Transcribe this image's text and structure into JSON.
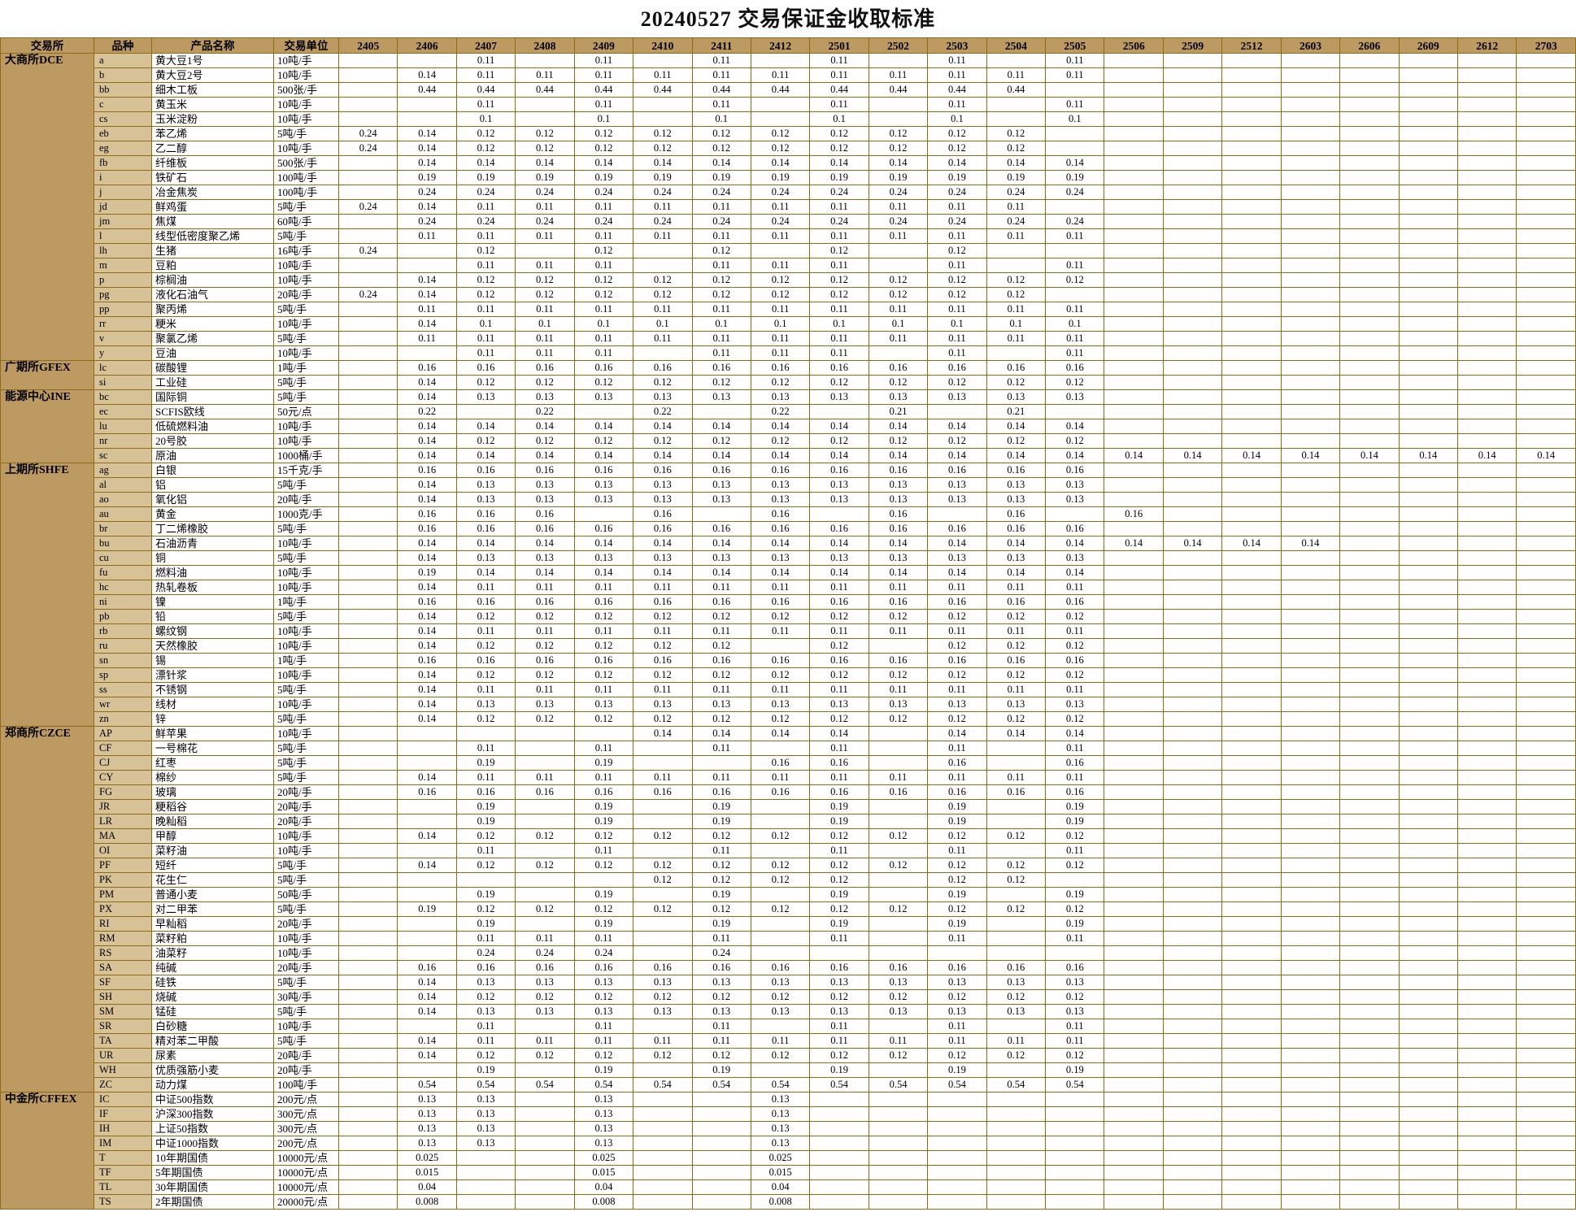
{
  "title": "20240527  交易保证金收取标准",
  "colors": {
    "header_bg": "#bc9a62",
    "code_bg": "#d7c197",
    "grid": "#8e6b16",
    "text": "#000000"
  },
  "table": {
    "headers": [
      "交易所",
      "品种",
      "产品名称",
      "交易单位"
    ],
    "months": [
      "2405",
      "2406",
      "2407",
      "2408",
      "2409",
      "2410",
      "2411",
      "2412",
      "2501",
      "2502",
      "2503",
      "2504",
      "2505",
      "2506",
      "2509",
      "2512",
      "2603",
      "2606",
      "2609",
      "2612",
      "2703"
    ],
    "exchanges": [
      {
        "name": "大商所DCE",
        "rows": [
          {
            "code": "a",
            "product": "黄大豆1号",
            "unit": "10吨/手",
            "m": {
              "2407": "0.11",
              "2409": "0.11",
              "2411": "0.11",
              "2501": "0.11",
              "2503": "0.11",
              "2505": "0.11"
            }
          },
          {
            "code": "b",
            "product": "黄大豆2号",
            "unit": "10吨/手",
            "m": {
              "2406": "0.14",
              "2407-2505": "0.11"
            }
          },
          {
            "code": "bb",
            "product": "细木工板",
            "unit": "500张/手",
            "m": {
              "2406-2504": "0.44"
            }
          },
          {
            "code": "c",
            "product": "黄玉米",
            "unit": "10吨/手",
            "m": {
              "2407": "0.11",
              "2409": "0.11",
              "2411": "0.11",
              "2501": "0.11",
              "2503": "0.11",
              "2505": "0.11"
            }
          },
          {
            "code": "cs",
            "product": "玉米淀粉",
            "unit": "10吨/手",
            "m": {
              "2407": "0.1",
              "2409": "0.1",
              "2411": "0.1",
              "2501": "0.1",
              "2503": "0.1",
              "2505": "0.1"
            }
          },
          {
            "code": "eb",
            "product": "苯乙烯",
            "unit": "5吨/手",
            "m": {
              "2405": "0.24",
              "2406": "0.14",
              "2407-2504": "0.12"
            }
          },
          {
            "code": "eg",
            "product": "乙二醇",
            "unit": "10吨/手",
            "m": {
              "2405": "0.24",
              "2406": "0.14",
              "2407-2504": "0.12"
            }
          },
          {
            "code": "fb",
            "product": "纤维板",
            "unit": "500张/手",
            "m": {
              "2406-2505": "0.14"
            }
          },
          {
            "code": "i",
            "product": "铁矿石",
            "unit": "100吨/手",
            "m": {
              "2406-2505": "0.19"
            }
          },
          {
            "code": "j",
            "product": "冶金焦炭",
            "unit": "100吨/手",
            "m": {
              "2406-2505": "0.24"
            }
          },
          {
            "code": "jd",
            "product": "鲜鸡蛋",
            "unit": "5吨/手",
            "m": {
              "2405": "0.24",
              "2406": "0.14",
              "2407-2504": "0.11"
            }
          },
          {
            "code": "jm",
            "product": "焦煤",
            "unit": "60吨/手",
            "m": {
              "2406-2505": "0.24"
            }
          },
          {
            "code": "l",
            "product": "线型低密度聚乙烯",
            "unit": "5吨/手",
            "m": {
              "2406-2505": "0.11"
            }
          },
          {
            "code": "lh",
            "product": "生猪",
            "unit": "16吨/手",
            "m": {
              "2405": "0.24",
              "2407": "0.12",
              "2409": "0.12",
              "2411": "0.12",
              "2501": "0.12",
              "2503": "0.12"
            }
          },
          {
            "code": "m",
            "product": "豆粕",
            "unit": "10吨/手",
            "m": {
              "2407-2409": "0.11",
              "2411": "0.11",
              "2412": "0.11",
              "2501": "0.11",
              "2503": "0.11",
              "2505": "0.11"
            }
          },
          {
            "code": "p",
            "product": "棕榈油",
            "unit": "10吨/手",
            "m": {
              "2406": "0.14",
              "2407-2505": "0.12"
            }
          },
          {
            "code": "pg",
            "product": "液化石油气",
            "unit": "20吨/手",
            "m": {
              "2405": "0.24",
              "2406": "0.14",
              "2407-2504": "0.12"
            }
          },
          {
            "code": "pp",
            "product": "聚丙烯",
            "unit": "5吨/手",
            "m": {
              "2406-2505": "0.11"
            }
          },
          {
            "code": "rr",
            "product": "粳米",
            "unit": "10吨/手",
            "m": {
              "2406": "0.14",
              "2407-2505": "0.1"
            }
          },
          {
            "code": "v",
            "product": "聚氯乙烯",
            "unit": "5吨/手",
            "m": {
              "2406-2505": "0.11"
            }
          },
          {
            "code": "y",
            "product": "豆油",
            "unit": "10吨/手",
            "m": {
              "2407-2409": "0.11",
              "2411": "0.11",
              "2412": "0.11",
              "2501": "0.11",
              "2503": "0.11",
              "2505": "0.11"
            }
          }
        ]
      },
      {
        "name": "广期所GFEX",
        "rows": [
          {
            "code": "lc",
            "product": "碳酸锂",
            "unit": "1吨/手",
            "m": {
              "2406-2505": "0.16"
            }
          },
          {
            "code": "si",
            "product": "工业硅",
            "unit": "5吨/手",
            "m": {
              "2406": "0.14",
              "2407-2505": "0.12"
            }
          }
        ]
      },
      {
        "name": "能源中心INE",
        "rows": [
          {
            "code": "bc",
            "product": "国际铜",
            "unit": "5吨/手",
            "m": {
              "2406": "0.14",
              "2407-2505": "0.13"
            }
          },
          {
            "code": "ec",
            "product": "SCFIS欧线",
            "unit": "50元/点",
            "m": {
              "2406": "0.22",
              "2408": "0.22",
              "2410": "0.22",
              "2412": "0.22",
              "2502": "0.21",
              "2504": "0.21"
            }
          },
          {
            "code": "lu",
            "product": "低硫燃料油",
            "unit": "10吨/手",
            "m": {
              "2406-2505": "0.14"
            }
          },
          {
            "code": "nr",
            "product": "20号胶",
            "unit": "10吨/手",
            "m": {
              "2406": "0.14",
              "2407-2505": "0.12"
            }
          },
          {
            "code": "sc",
            "product": "原油",
            "unit": "1000桶/手",
            "m": {
              "2406-2703": "0.14"
            }
          }
        ]
      },
      {
        "name": "上期所SHFE",
        "rows": [
          {
            "code": "ag",
            "product": "白银",
            "unit": "15千克/手",
            "m": {
              "2406-2505": "0.16"
            }
          },
          {
            "code": "al",
            "product": "铝",
            "unit": "5吨/手",
            "m": {
              "2406": "0.14",
              "2407-2505": "0.13"
            }
          },
          {
            "code": "ao",
            "product": "氧化铝",
            "unit": "20吨/手",
            "m": {
              "2406": "0.14",
              "2407-2505": "0.13"
            }
          },
          {
            "code": "au",
            "product": "黄金",
            "unit": "1000克/手",
            "m": {
              "2406": "0.16",
              "2407": "0.16",
              "2408": "0.16",
              "2410": "0.16",
              "2412": "0.16",
              "2502": "0.16",
              "2504": "0.16",
              "2506": "0.16"
            }
          },
          {
            "code": "br",
            "product": "丁二烯橡胶",
            "unit": "5吨/手",
            "m": {
              "2406-2505": "0.16"
            }
          },
          {
            "code": "bu",
            "product": "石油沥青",
            "unit": "10吨/手",
            "m": {
              "2406-2603": "0.14"
            }
          },
          {
            "code": "cu",
            "product": "铜",
            "unit": "5吨/手",
            "m": {
              "2406": "0.14",
              "2407-2505": "0.13"
            }
          },
          {
            "code": "fu",
            "product": "燃料油",
            "unit": "10吨/手",
            "m": {
              "2406": "0.19",
              "2407-2505": "0.14"
            }
          },
          {
            "code": "hc",
            "product": "热轧卷板",
            "unit": "10吨/手",
            "m": {
              "2406": "0.14",
              "2407-2505": "0.11"
            }
          },
          {
            "code": "ni",
            "product": "镍",
            "unit": "1吨/手",
            "m": {
              "2406-2505": "0.16"
            }
          },
          {
            "code": "pb",
            "product": "铅",
            "unit": "5吨/手",
            "m": {
              "2406": "0.14",
              "2407-2505": "0.12"
            }
          },
          {
            "code": "rb",
            "product": "螺纹钢",
            "unit": "10吨/手",
            "m": {
              "2406": "0.14",
              "2407-2505": "0.11"
            }
          },
          {
            "code": "ru",
            "product": "天然橡胶",
            "unit": "10吨/手",
            "m": {
              "2406": "0.14",
              "2407-2411": "0.12",
              "2501": "0.12",
              "2503-2505": "0.12"
            }
          },
          {
            "code": "sn",
            "product": "锡",
            "unit": "1吨/手",
            "m": {
              "2406-2505": "0.16"
            }
          },
          {
            "code": "sp",
            "product": "漂针浆",
            "unit": "10吨/手",
            "m": {
              "2406": "0.14",
              "2407-2505": "0.12"
            }
          },
          {
            "code": "ss",
            "product": "不锈钢",
            "unit": "5吨/手",
            "m": {
              "2406": "0.14",
              "2407-2505": "0.11"
            }
          },
          {
            "code": "wr",
            "product": "线材",
            "unit": "10吨/手",
            "m": {
              "2406": "0.14",
              "2407-2505": "0.13"
            }
          },
          {
            "code": "zn",
            "product": "锌",
            "unit": "5吨/手",
            "m": {
              "2406": "0.14",
              "2407-2505": "0.12"
            }
          }
        ]
      },
      {
        "name": "郑商所CZCE",
        "rows": [
          {
            "code": "AP",
            "product": "鲜苹果",
            "unit": "10吨/手",
            "m": {
              "2410-2501": "0.14",
              "2503-2505": "0.14"
            }
          },
          {
            "code": "CF",
            "product": "一号棉花",
            "unit": "5吨/手",
            "m": {
              "2407": "0.11",
              "2409": "0.11",
              "2411": "0.11",
              "2501": "0.11",
              "2503": "0.11",
              "2505": "0.11"
            }
          },
          {
            "code": "CJ",
            "product": "红枣",
            "unit": "5吨/手",
            "m": {
              "2407": "0.19",
              "2409": "0.19",
              "2412": "0.16",
              "2501": "0.16",
              "2503": "0.16",
              "2505": "0.16"
            }
          },
          {
            "code": "CY",
            "product": "棉纱",
            "unit": "5吨/手",
            "m": {
              "2406": "0.14",
              "2407-2505": "0.11"
            }
          },
          {
            "code": "FG",
            "product": "玻璃",
            "unit": "20吨/手",
            "m": {
              "2406-2505": "0.16"
            }
          },
          {
            "code": "JR",
            "product": "粳稻谷",
            "unit": "20吨/手",
            "m": {
              "2407": "0.19",
              "2409": "0.19",
              "2411": "0.19",
              "2501": "0.19",
              "2503": "0.19",
              "2505": "0.19"
            }
          },
          {
            "code": "LR",
            "product": "晚籼稻",
            "unit": "20吨/手",
            "m": {
              "2407": "0.19",
              "2409": "0.19",
              "2411": "0.19",
              "2501": "0.19",
              "2503": "0.19",
              "2505": "0.19"
            }
          },
          {
            "code": "MA",
            "product": "甲醇",
            "unit": "10吨/手",
            "m": {
              "2406": "0.14",
              "2407-2505": "0.12"
            }
          },
          {
            "code": "OI",
            "product": "菜籽油",
            "unit": "10吨/手",
            "m": {
              "2407": "0.11",
              "2409": "0.11",
              "2411": "0.11",
              "2501": "0.11",
              "2503": "0.11",
              "2505": "0.11"
            }
          },
          {
            "code": "PF",
            "product": "短纤",
            "unit": "5吨/手",
            "m": {
              "2406": "0.14",
              "2407-2505": "0.12"
            }
          },
          {
            "code": "PK",
            "product": "花生仁",
            "unit": "5吨/手",
            "m": {
              "2410-2501": "0.12",
              "2503": "0.12",
              "2504": "0.12"
            }
          },
          {
            "code": "PM",
            "product": "普通小麦",
            "unit": "50吨/手",
            "m": {
              "2407": "0.19",
              "2409": "0.19",
              "2411": "0.19",
              "2501": "0.19",
              "2503": "0.19",
              "2505": "0.19"
            }
          },
          {
            "code": "PX",
            "product": "对二甲苯",
            "unit": "5吨/手",
            "m": {
              "2406": "0.19",
              "2407-2505": "0.12"
            }
          },
          {
            "code": "RI",
            "product": "早籼稻",
            "unit": "20吨/手",
            "m": {
              "2407": "0.19",
              "2409": "0.19",
              "2411": "0.19",
              "2501": "0.19",
              "2503": "0.19",
              "2505": "0.19"
            }
          },
          {
            "code": "RM",
            "product": "菜籽粕",
            "unit": "10吨/手",
            "m": {
              "2407-2409": "0.11",
              "2411": "0.11",
              "2501": "0.11",
              "2503": "0.11",
              "2505": "0.11"
            }
          },
          {
            "code": "RS",
            "product": "油菜籽",
            "unit": "10吨/手",
            "m": {
              "2407-2409": "0.24",
              "2411": "0.24"
            }
          },
          {
            "code": "SA",
            "product": "纯碱",
            "unit": "20吨/手",
            "m": {
              "2406-2505": "0.16"
            }
          },
          {
            "code": "SF",
            "product": "硅铁",
            "unit": "5吨/手",
            "m": {
              "2406": "0.14",
              "2407-2505": "0.13"
            }
          },
          {
            "code": "SH",
            "product": "烧碱",
            "unit": "30吨/手",
            "m": {
              "2406": "0.14",
              "2407-2505": "0.12"
            }
          },
          {
            "code": "SM",
            "product": "锰硅",
            "unit": "5吨/手",
            "m": {
              "2406": "0.14",
              "2407-2505": "0.13"
            }
          },
          {
            "code": "SR",
            "product": "白砂糖",
            "unit": "10吨/手",
            "m": {
              "2407": "0.11",
              "2409": "0.11",
              "2411": "0.11",
              "2501": "0.11",
              "2503": "0.11",
              "2505": "0.11"
            }
          },
          {
            "code": "TA",
            "product": "精对苯二甲酸",
            "unit": "5吨/手",
            "m": {
              "2406": "0.14",
              "2407-2505": "0.11"
            }
          },
          {
            "code": "UR",
            "product": "尿素",
            "unit": "20吨/手",
            "m": {
              "2406": "0.14",
              "2407-2505": "0.12"
            }
          },
          {
            "code": "WH",
            "product": "优质强筋小麦",
            "unit": "20吨/手",
            "m": {
              "2407": "0.19",
              "2409": "0.19",
              "2411": "0.19",
              "2501": "0.19",
              "2503": "0.19",
              "2505": "0.19"
            }
          },
          {
            "code": "ZC",
            "product": "动力煤",
            "unit": "100吨/手",
            "m": {
              "2406-2505": "0.54"
            }
          }
        ]
      },
      {
        "name": "中金所CFFEX",
        "rows": [
          {
            "code": "IC",
            "product": "中证500指数",
            "unit": "200元/点",
            "m": {
              "2406": "0.13",
              "2407": "0.13",
              "2409": "0.13",
              "2412": "0.13"
            }
          },
          {
            "code": "IF",
            "product": "沪深300指数",
            "unit": "300元/点",
            "m": {
              "2406": "0.13",
              "2407": "0.13",
              "2409": "0.13",
              "2412": "0.13"
            }
          },
          {
            "code": "IH",
            "product": "上证50指数",
            "unit": "300元/点",
            "m": {
              "2406": "0.13",
              "2407": "0.13",
              "2409": "0.13",
              "2412": "0.13"
            }
          },
          {
            "code": "IM",
            "product": "中证1000指数",
            "unit": "200元/点",
            "m": {
              "2406": "0.13",
              "2407": "0.13",
              "2409": "0.13",
              "2412": "0.13"
            }
          },
          {
            "code": "T",
            "product": "10年期国债",
            "unit": "10000元/点",
            "m": {
              "2406": "0.025",
              "2409": "0.025",
              "2412": "0.025"
            }
          },
          {
            "code": "TF",
            "product": "5年期国债",
            "unit": "10000元/点",
            "m": {
              "2406": "0.015",
              "2409": "0.015",
              "2412": "0.015"
            }
          },
          {
            "code": "TL",
            "product": "30年期国债",
            "unit": "10000元/点",
            "m": {
              "2406": "0.04",
              "2409": "0.04",
              "2412": "0.04"
            }
          },
          {
            "code": "TS",
            "product": "2年期国债",
            "unit": "20000元/点",
            "m": {
              "2406": "0.008",
              "2409": "0.008",
              "2412": "0.008"
            }
          }
        ]
      }
    ]
  }
}
